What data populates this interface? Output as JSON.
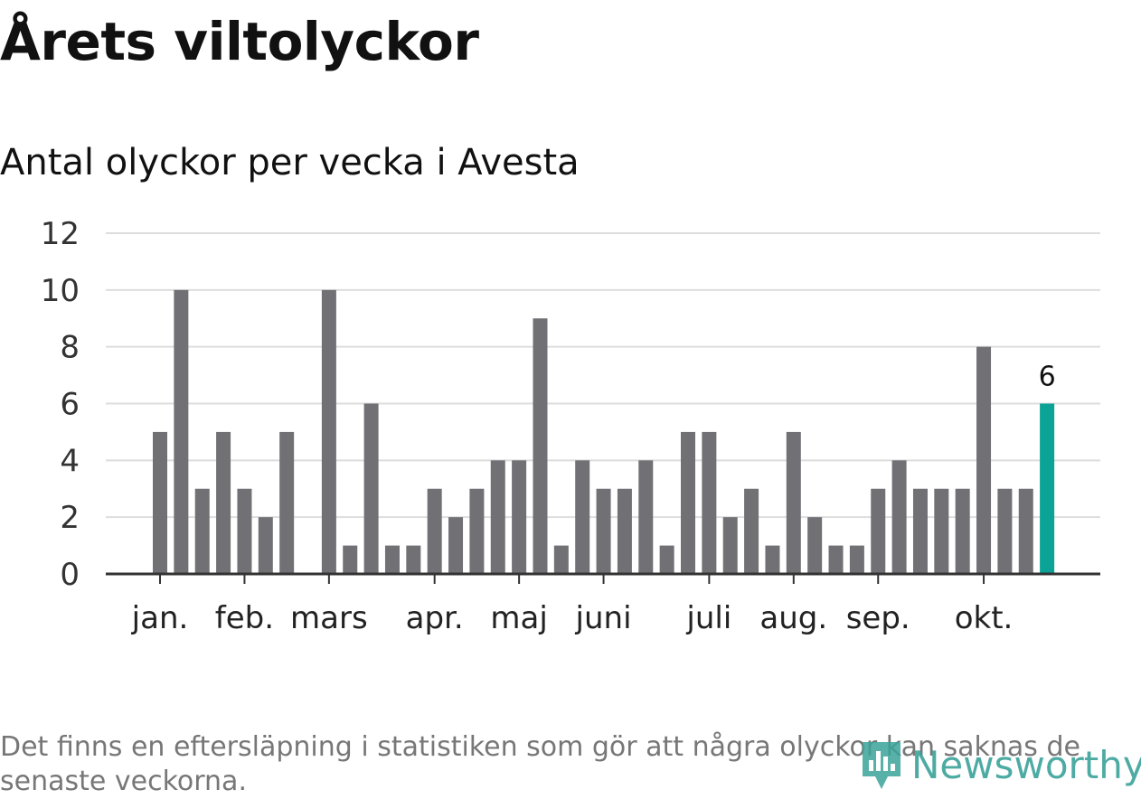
{
  "header": {
    "title": "Årets viltolyckor",
    "subtitle": "Antal olyckor per vecka i Avesta"
  },
  "footnote": "Det finns en eftersläpning i statistiken som gör att några olyckor kan saknas de senaste veckorna.",
  "logo": {
    "text": "Newsworthy",
    "icon": "bar-chart-pin-icon"
  },
  "colors": {
    "bar": "#717075",
    "highlight": "#0aa396",
    "grid": "#dddddd",
    "axis": "#333333",
    "logo": "#3aa39a"
  },
  "chart_data": {
    "type": "bar",
    "title": "Antal olyckor per vecka i Avesta",
    "xlabel": "",
    "ylabel": "",
    "ylim": [
      0,
      12
    ],
    "yticks": [
      0,
      2,
      4,
      6,
      8,
      10,
      12
    ],
    "categories": [
      1,
      2,
      3,
      4,
      5,
      6,
      7,
      8,
      9,
      10,
      11,
      12,
      13,
      14,
      15,
      16,
      17,
      18,
      19,
      20,
      21,
      22,
      23,
      24,
      25,
      26,
      27,
      28,
      29,
      30,
      31,
      32,
      33,
      34,
      35,
      36,
      37,
      38,
      39,
      40,
      41,
      42,
      43
    ],
    "values": [
      5,
      10,
      3,
      5,
      3,
      2,
      5,
      0,
      10,
      1,
      6,
      1,
      1,
      3,
      2,
      3,
      4,
      4,
      9,
      1,
      4,
      3,
      3,
      4,
      1,
      5,
      5,
      2,
      3,
      1,
      5,
      2,
      1,
      1,
      3,
      4,
      3,
      3,
      3,
      8,
      3,
      3,
      6
    ],
    "highlight_index": 42,
    "highlight_label": "6",
    "month_labels": [
      {
        "label": "jan.",
        "week": 1
      },
      {
        "label": "feb.",
        "week": 5
      },
      {
        "label": "mars",
        "week": 9
      },
      {
        "label": "apr.",
        "week": 14
      },
      {
        "label": "maj",
        "week": 18
      },
      {
        "label": "juni",
        "week": 22
      },
      {
        "label": "juli",
        "week": 27
      },
      {
        "label": "aug.",
        "week": 31
      },
      {
        "label": "sep.",
        "week": 35
      },
      {
        "label": "okt.",
        "week": 40
      }
    ],
    "grid": true,
    "legend": "none"
  }
}
